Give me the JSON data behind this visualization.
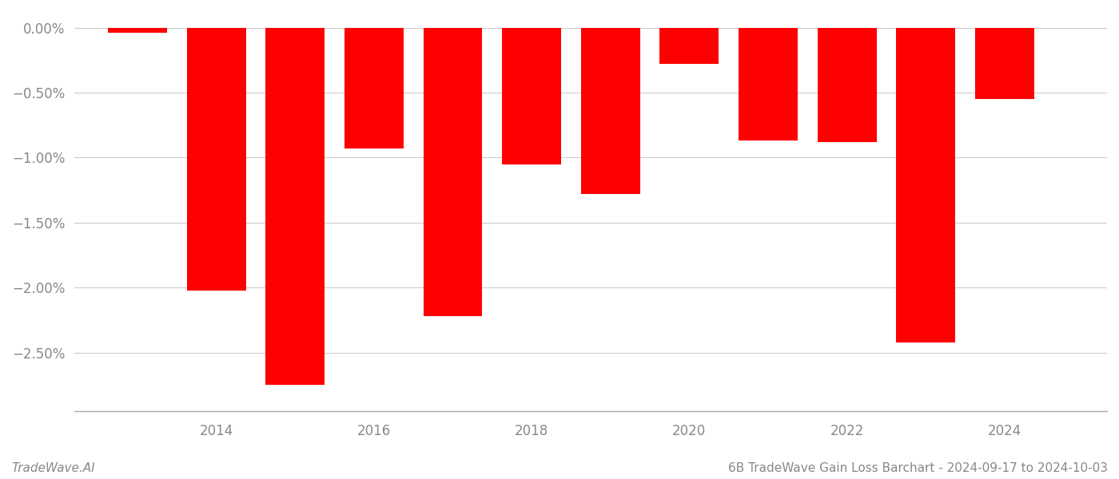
{
  "years": [
    2013,
    2014,
    2015,
    2016,
    2017,
    2018,
    2019,
    2020,
    2021,
    2022,
    2023,
    2024
  ],
  "values": [
    -0.04,
    -2.02,
    -2.75,
    -0.93,
    -2.22,
    -1.05,
    -1.28,
    -0.28,
    -0.87,
    -0.88,
    -2.42,
    -0.55
  ],
  "bar_color": "#ff0000",
  "ylim_bottom": -2.95,
  "ylim_top": 0.12,
  "yticks": [
    0.0,
    -0.5,
    -1.0,
    -1.5,
    -2.0,
    -2.5
  ],
  "ytick_labels": [
    "0.00%",
    "−0.50%",
    "−1.00%",
    "−1.50%",
    "−2.00%",
    "−2.50%"
  ],
  "background_color": "#ffffff",
  "grid_color": "#cccccc",
  "xlabel_color": "#888888",
  "ylabel_color": "#888888",
  "footer_left": "TradeWave.AI",
  "footer_right": "6B TradeWave Gain Loss Barchart - 2024-09-17 to 2024-10-03",
  "footer_color": "#888888",
  "footer_fontsize": 11,
  "bar_width": 0.75,
  "xlim_left": 2012.2,
  "xlim_right": 2025.3,
  "xtick_labels": [
    "2014",
    "2016",
    "2018",
    "2020",
    "2022",
    "2024"
  ],
  "xtick_positions": [
    2014,
    2016,
    2018,
    2020,
    2022,
    2024
  ]
}
